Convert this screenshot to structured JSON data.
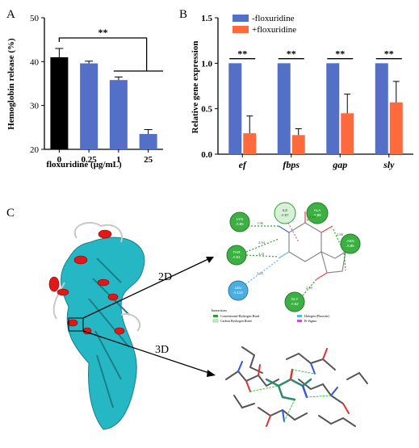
{
  "panel_labels": {
    "a": "A",
    "b": "B",
    "c": "C"
  },
  "colors": {
    "black": "#000000",
    "blue": "#5470c6",
    "orange": "#ff6a3d",
    "teal": "#25b7c4",
    "helix_red": "#e01818",
    "hbond_green": "#2ca02c",
    "pi_magenta": "#cc55cc",
    "halogen_cyan": "#55bbdd"
  },
  "chart_data": [
    {
      "type": "bar",
      "panel": "A",
      "title": "",
      "xlabel": "floxuridine (μg/mL)",
      "ylabel": "Hemoglobin release (%)",
      "categories": [
        "0",
        "0.25",
        "1",
        "25"
      ],
      "values": [
        41.0,
        39.6,
        35.8,
        23.5
      ],
      "errors": [
        2.0,
        0.5,
        0.7,
        1.0
      ],
      "bar_colors": [
        "#000000",
        "#5470c6",
        "#5470c6",
        "#5470c6"
      ],
      "ylim": [
        20,
        50
      ],
      "yticks": [
        "20",
        "30",
        "40",
        "50"
      ],
      "grid": false,
      "significance": "**"
    },
    {
      "type": "bar",
      "panel": "B",
      "title": "",
      "xlabel": "",
      "ylabel": "Relative gene expression",
      "categories": [
        "ef",
        "fbps",
        "gap",
        "sly"
      ],
      "series": [
        {
          "name": "-floxuridine",
          "color": "#5470c6",
          "values": [
            1.0,
            1.0,
            1.0,
            1.0
          ],
          "errors": [
            0,
            0,
            0,
            0
          ]
        },
        {
          "name": "+floxuridine",
          "color": "#ff6a3d",
          "values": [
            0.23,
            0.21,
            0.45,
            0.57
          ],
          "errors": [
            0.19,
            0.07,
            0.21,
            0.23
          ]
        }
      ],
      "ylim": [
        0,
        1.5
      ],
      "yticks": [
        "0.0",
        "0.5",
        "1.0",
        "1.5"
      ],
      "legend_position": "top-left",
      "grid": false,
      "significance": [
        "**",
        "**",
        "**",
        "**"
      ]
    }
  ],
  "panel_c": {
    "arrow_2d_label": "2D",
    "arrow_3d_label": "3D",
    "residues": [
      {
        "name": "ILE",
        "num": "A:87"
      },
      {
        "name": "ALA",
        "num": "A:88"
      },
      {
        "name": "LYS",
        "num": "A:85"
      },
      {
        "name": "ASN",
        "num": "A:86"
      },
      {
        "name": "THR",
        "num": "A:61"
      },
      {
        "name": "LEU",
        "num": "A:110"
      },
      {
        "name": "GLY",
        "num": "A:62"
      }
    ],
    "bond_distances": [
      "1.96",
      "2.94",
      "2.41",
      "2.49",
      "2.86",
      "2.49",
      "2.42"
    ],
    "legend": {
      "title": "Interactions",
      "items": [
        "Conventional Hydrogen Bond",
        "Carbon Hydrogen Bond",
        "Halogen (Fluorine)",
        "Pi-Sigma"
      ]
    }
  }
}
